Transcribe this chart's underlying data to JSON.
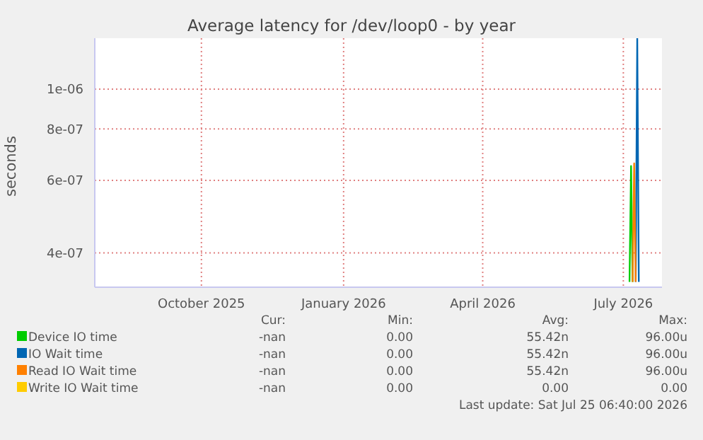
{
  "chart_data": {
    "type": "line",
    "title": "Average latency for /dev/loop0 - by year",
    "ylabel": "seconds",
    "xlim": [
      "2025-07-24",
      "2026-07-26"
    ],
    "xticks": [
      {
        "value": "2025-10-01",
        "label": "October 2025"
      },
      {
        "value": "2026-01-01",
        "label": "January 2026"
      },
      {
        "value": "2026-04-01",
        "label": "April 2026"
      },
      {
        "value": "2026-07-01",
        "label": "July 2026"
      }
    ],
    "ylim": [
      3.3e-07,
      1.33e-06
    ],
    "log": "y",
    "yticks": [
      {
        "value": 4e-07,
        "label": "4e-07"
      },
      {
        "value": 6e-07,
        "label": "6e-07"
      },
      {
        "value": 8e-07,
        "label": "8e-07"
      },
      {
        "value": 1e-06,
        "label": "1e-06"
      }
    ],
    "grid": true,
    "legend": "bottom",
    "series": [
      {
        "name": "Device IO time",
        "color": "#00cc00",
        "x": [
          "2026-07-05",
          "2026-07-06",
          "2026-07-07"
        ],
        "values": [
          3.4e-07,
          6.5e-07,
          3.4e-07
        ]
      },
      {
        "name": "IO Wait time",
        "color": "#0066b3",
        "x": [
          "2026-07-09",
          "2026-07-10",
          "2026-07-11"
        ],
        "values": [
          3.4e-07,
          1.33e-06,
          3.4e-07
        ]
      },
      {
        "name": "Read IO Wait time",
        "color": "#ff8000",
        "x": [
          "2026-07-07",
          "2026-07-08",
          "2026-07-09"
        ],
        "values": [
          3.4e-07,
          6.6e-07,
          3.4e-07
        ]
      },
      {
        "name": "Write IO Wait time",
        "color": "#ffcc00"
      }
    ],
    "annotations": [
      "Cur:",
      "Min:",
      "Avg:",
      "Max:",
      "-nan",
      "0.00",
      "55.42n",
      "96.00u",
      "-nan",
      "0.00",
      "55.42n",
      "96.00u",
      "-nan",
      "0.00",
      "55.42n",
      "96.00u",
      "-nan",
      "0.00",
      "0.00",
      "0.00",
      "Last update: Sat Jul 25 06:40:00 2026"
    ]
  }
}
